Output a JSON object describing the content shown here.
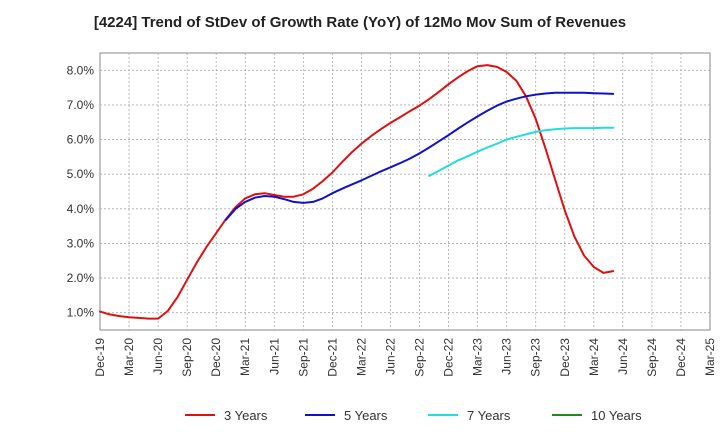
{
  "chart_data": {
    "type": "line",
    "title": "[4224]  Trend of StDev of Growth Rate (YoY) of 12Mo Mov Sum of Revenues",
    "xlabel": "",
    "ylabel": "",
    "ylim": [
      0.5,
      8.5
    ],
    "ytick_values": [
      1,
      2,
      3,
      4,
      5,
      6,
      7,
      8
    ],
    "ytick_labels": [
      "1.0%",
      "2.0%",
      "3.0%",
      "4.0%",
      "5.0%",
      "6.0%",
      "7.0%",
      "8.0%"
    ],
    "x_tick_labels": [
      "Dec-19",
      "Mar-20",
      "Jun-20",
      "Sep-20",
      "Dec-20",
      "Mar-21",
      "Jun-21",
      "Sep-21",
      "Dec-21",
      "Mar-22",
      "Jun-22",
      "Sep-22",
      "Dec-22",
      "Mar-23",
      "Jun-23",
      "Sep-23",
      "Dec-23",
      "Mar-24",
      "Jun-24",
      "Sep-24",
      "Dec-24",
      "Mar-25"
    ],
    "grid": true,
    "legend_position": "bottom",
    "series": [
      {
        "name": "3 Years",
        "color": "#dd1111",
        "start_index": 0,
        "values": [
          1.03,
          0.95,
          0.9,
          0.87,
          0.85,
          0.83,
          0.83,
          1.05,
          1.45,
          1.95,
          2.45,
          2.9,
          3.3,
          3.7,
          4.05,
          4.3,
          4.42,
          4.45,
          4.4,
          4.35,
          4.35,
          4.42,
          4.58,
          4.8,
          5.05,
          5.35,
          5.63,
          5.88,
          6.1,
          6.3,
          6.48,
          6.65,
          6.82,
          6.98,
          7.17,
          7.38,
          7.6,
          7.8,
          7.98,
          8.12,
          8.15,
          8.1,
          7.95,
          7.7,
          7.25,
          6.6,
          5.75,
          4.85,
          3.95,
          3.2,
          2.65,
          2.32,
          2.15,
          2.2
        ]
      },
      {
        "name": "5 Years",
        "color": "#1111cc",
        "start_index": 13,
        "values": [
          3.68,
          4.0,
          4.2,
          4.32,
          4.37,
          4.35,
          4.28,
          4.2,
          4.17,
          4.2,
          4.3,
          4.45,
          4.58,
          4.7,
          4.82,
          4.95,
          5.08,
          5.2,
          5.32,
          5.45,
          5.6,
          5.77,
          5.95,
          6.13,
          6.32,
          6.5,
          6.67,
          6.83,
          6.98,
          7.1,
          7.18,
          7.25,
          7.3,
          7.33,
          7.35,
          7.35,
          7.35,
          7.35,
          7.34,
          7.33,
          7.32
        ]
      },
      {
        "name": "7 Years",
        "color": "#22dddd",
        "start_index": 34,
        "values": [
          4.95,
          5.1,
          5.25,
          5.4,
          5.52,
          5.65,
          5.77,
          5.88,
          6.0,
          6.08,
          6.15,
          6.22,
          6.27,
          6.3,
          6.32,
          6.33,
          6.33,
          6.33,
          6.34,
          6.34
        ]
      },
      {
        "name": "10 Years",
        "color": "#228822",
        "start_index": 0,
        "values": []
      }
    ]
  }
}
